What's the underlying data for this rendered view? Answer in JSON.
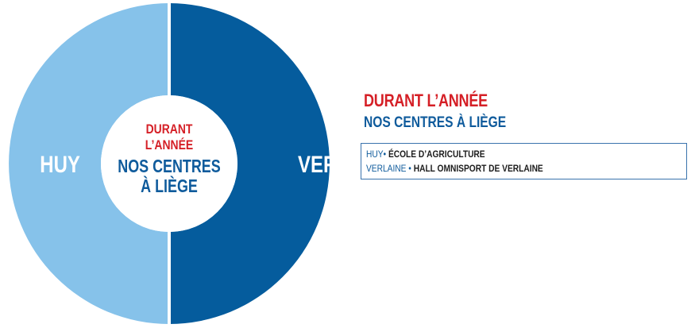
{
  "chart_data": {
    "type": "pie",
    "variant": "donut",
    "slices": [
      {
        "label": "HUY",
        "value": 50,
        "color": "#86c2ea"
      },
      {
        "label": "VERLAINE",
        "value": 50,
        "color": "#055c9d"
      }
    ],
    "center": {
      "line1": "DURANT",
      "line2": "L’ANNÉE",
      "line3": "NOS CENTRES",
      "line4": "À LIÈGE"
    }
  },
  "info": {
    "title": "DURANT L’ANNÉE",
    "subtitle": "NOS CENTRES À LIÈGE"
  },
  "legend": [
    {
      "key": "HUY",
      "separator": "•",
      "value": "ÉCOLE D’AGRICULTURE"
    },
    {
      "key": "VERLAINE",
      "separator": "•",
      "value": "HALL OMNISPORT DE VERLAINE"
    }
  ],
  "colors": {
    "red": "#d51f26",
    "blue": "#0f5b9c"
  }
}
